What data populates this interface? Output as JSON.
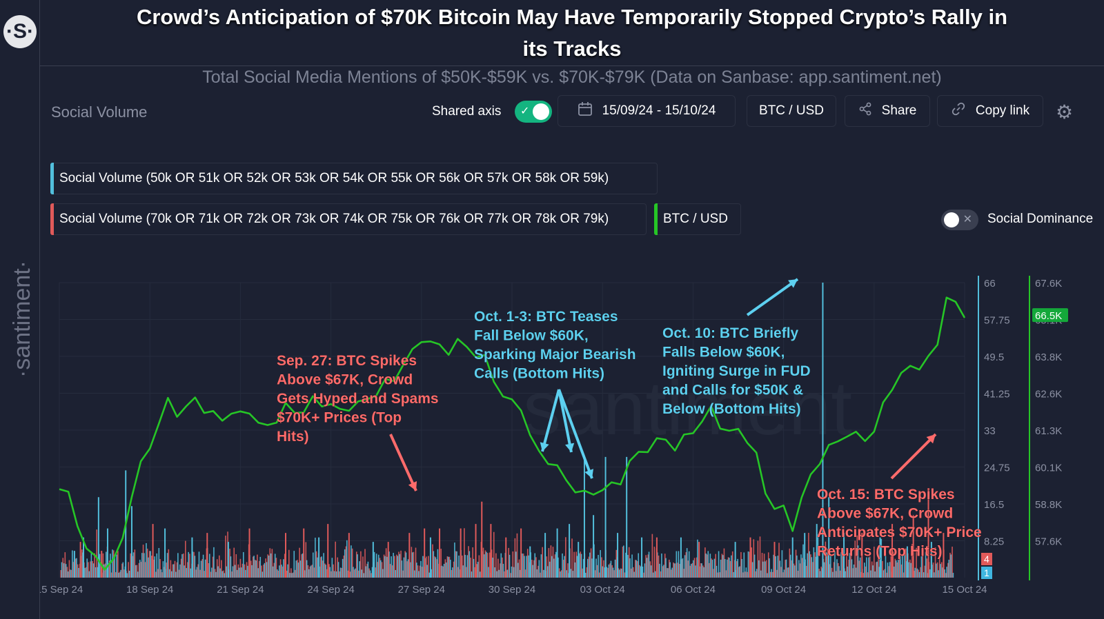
{
  "logo_symbol": "·S·",
  "watermark": "·santiment·",
  "headline": "Crowd’s Anticipation of $70K Bitcoin May Have Temporarily Stopped Crypto’s Rally in its Tracks",
  "subtitle": "Total Social Media Mentions of $50K-$59K vs. $70K-$79K (Data on Sanbase: app.santiment.net)",
  "toolbar": {
    "section_label": "Social Volume",
    "shared_axis_label": "Shared axis",
    "shared_axis_on": true,
    "date_range": "15/09/24 - 15/10/24",
    "pair": "BTC / USD",
    "share_label": "Share",
    "copy_link_label": "Copy link"
  },
  "legend": {
    "item1": "Social Volume (50k OR 51k OR 52k OR 53k OR 54k OR 55k OR 56k OR 57k OR 58k OR 59k)",
    "item2": "Social Volume (70k OR 71k OR 72k OR 73k OR 74k OR 75k OR 76k OR 77k OR 78k OR 79k)",
    "item3": "BTC / USD",
    "social_dominance_label": "Social Dominance",
    "social_dominance_on": false
  },
  "colors": {
    "background": "#1c2132",
    "blue": "#52bfdc",
    "red": "#e05a5a",
    "green": "#26c626",
    "annotation_red": "#ff6b6b",
    "annotation_blue": "#5dd0f0"
  },
  "chart_data": {
    "type": "line",
    "x_tick_labels": [
      "15 Sep 24",
      "18 Sep 24",
      "21 Sep 24",
      "24 Sep 24",
      "27 Sep 24",
      "30 Sep 24",
      "03 Oct 24",
      "06 Oct 24",
      "09 Oct 24",
      "12 Oct 24",
      "15 Oct 24"
    ],
    "x_range_days": [
      0,
      30
    ],
    "y_left_ticks": [
      "66",
      "57.75",
      "49.5",
      "41.25",
      "33",
      "24.75",
      "16.5",
      "8.25"
    ],
    "y_left_range": [
      0,
      66
    ],
    "y_right_ticks": [
      "67.6K",
      "66.5K",
      "65.1K",
      "63.8K",
      "62.6K",
      "61.3K",
      "60.1K",
      "58.8K",
      "57.6K"
    ],
    "y_right_range": [
      57.6,
      67.6
    ],
    "btc_latest_label": "66.5K",
    "latest_red_value": "4",
    "latest_blue_value": "1",
    "series": [
      {
        "name": "BTC / USD",
        "color": "#26c626",
        "x_days": [
          0,
          0.3,
          0.6,
          0.9,
          1.2,
          1.5,
          1.8,
          2.1,
          2.4,
          2.7,
          3.0,
          3.3,
          3.6,
          3.9,
          4.2,
          4.5,
          4.8,
          5.1,
          5.4,
          5.7,
          6.0,
          6.3,
          6.6,
          6.9,
          7.2,
          7.5,
          7.8,
          8.1,
          8.4,
          8.7,
          9.0,
          9.3,
          9.6,
          9.9,
          10.2,
          10.5,
          10.8,
          11.1,
          11.4,
          11.7,
          12.0,
          12.3,
          12.6,
          12.9,
          13.2,
          13.5,
          13.8,
          14.1,
          14.4,
          14.7,
          15.0,
          15.3,
          15.6,
          15.9,
          16.2,
          16.5,
          16.8,
          17.1,
          17.4,
          17.7,
          18.0,
          18.3,
          18.6,
          18.9,
          19.2,
          19.5,
          19.8,
          20.1,
          20.4,
          20.7,
          21.0,
          21.3,
          21.6,
          21.9,
          22.2,
          22.5,
          22.8,
          23.1,
          23.4,
          23.7,
          24.0,
          24.3,
          24.6,
          24.9,
          25.2,
          25.5,
          25.8,
          26.1,
          26.4,
          26.7,
          27.0,
          27.3,
          27.6,
          27.9,
          28.2,
          28.5,
          28.8,
          29.1,
          29.4,
          29.7,
          30.0
        ],
        "values": [
          60.6,
          60.4,
          59.5,
          58.5,
          58.3,
          58.0,
          58.1,
          59.0,
          60.4,
          61.4,
          62.1,
          62.8,
          63.6,
          63.2,
          63.3,
          63.7,
          63.3,
          63.1,
          63.0,
          63.2,
          63.1,
          63.3,
          62.8,
          62.7,
          63.0,
          63.4,
          63.2,
          63.3,
          63.6,
          63.5,
          63.5,
          63.2,
          63.4,
          63.5,
          63.6,
          63.9,
          64.2,
          64.3,
          64.9,
          65.2,
          65.7,
          65.6,
          65.4,
          65.3,
          65.6,
          65.4,
          65.2,
          65.0,
          64.3,
          63.8,
          63.5,
          63.4,
          62.4,
          61.8,
          61.6,
          61.3,
          60.9,
          60.6,
          60.4,
          60.5,
          60.6,
          60.7,
          60.9,
          61.5,
          61.8,
          62.0,
          62.2,
          62.3,
          62.0,
          62.3,
          62.6,
          62.9,
          63.3,
          62.8,
          62.5,
          62.6,
          62.3,
          61.7,
          60.5,
          60.0,
          59.9,
          59.3,
          60.3,
          61.0,
          61.6,
          62.0,
          62.2,
          62.5,
          62.4,
          62.3,
          62.6,
          63.4,
          64.1,
          64.5,
          64.7,
          64.8,
          65.0,
          65.5,
          67.2,
          66.8,
          66.5
        ]
      },
      {
        "name": "Social Volume (50k OR 51k OR 52k OR 53k OR 54k OR 55k OR 56k OR 57k OR 58k OR 59k)",
        "color": "#52bfdc",
        "spikes": [
          {
            "x_day": 0.5,
            "value": 6
          },
          {
            "x_day": 0.8,
            "value": 9
          },
          {
            "x_day": 1.3,
            "value": 18
          },
          {
            "x_day": 1.6,
            "value": 11
          },
          {
            "x_day": 2.2,
            "value": 24
          },
          {
            "x_day": 2.4,
            "value": 16
          },
          {
            "x_day": 3.5,
            "value": 11
          },
          {
            "x_day": 4.4,
            "value": 9
          },
          {
            "x_day": 5.6,
            "value": 8
          },
          {
            "x_day": 8.6,
            "value": 9
          },
          {
            "x_day": 10.4,
            "value": 8
          },
          {
            "x_day": 12.3,
            "value": 9
          },
          {
            "x_day": 15.6,
            "value": 7
          },
          {
            "x_day": 16.1,
            "value": 10
          },
          {
            "x_day": 16.5,
            "value": 11
          },
          {
            "x_day": 16.9,
            "value": 12
          },
          {
            "x_day": 17.2,
            "value": 8
          },
          {
            "x_day": 17.4,
            "value": 27
          },
          {
            "x_day": 17.7,
            "value": 14
          },
          {
            "x_day": 18.1,
            "value": 27
          },
          {
            "x_day": 18.5,
            "value": 10
          },
          {
            "x_day": 18.8,
            "value": 27
          },
          {
            "x_day": 19.3,
            "value": 9
          },
          {
            "x_day": 20.6,
            "value": 9
          },
          {
            "x_day": 22.4,
            "value": 8
          },
          {
            "x_day": 24.3,
            "value": 9
          },
          {
            "x_day": 24.7,
            "value": 10
          },
          {
            "x_day": 25.1,
            "value": 12
          },
          {
            "x_day": 25.3,
            "value": 66
          },
          {
            "x_day": 25.5,
            "value": 18
          },
          {
            "x_day": 26.0,
            "value": 10
          },
          {
            "x_day": 27.2,
            "value": 9
          },
          {
            "x_day": 28.1,
            "value": 7
          },
          {
            "x_day": 28.9,
            "value": 8
          }
        ]
      },
      {
        "name": "Social Volume (70k OR 71k OR 72k OR 73k OR 74k OR 75k OR 76k OR 77k OR 78k OR 79k)",
        "color": "#e05a5a",
        "spikes": [
          {
            "x_day": 0.7,
            "value": 8
          },
          {
            "x_day": 1.4,
            "value": 6
          },
          {
            "x_day": 3.1,
            "value": 12
          },
          {
            "x_day": 4.9,
            "value": 10
          },
          {
            "x_day": 6.3,
            "value": 11
          },
          {
            "x_day": 7.5,
            "value": 10
          },
          {
            "x_day": 8.1,
            "value": 11
          },
          {
            "x_day": 8.9,
            "value": 12
          },
          {
            "x_day": 9.6,
            "value": 10
          },
          {
            "x_day": 10.9,
            "value": 8
          },
          {
            "x_day": 11.6,
            "value": 10
          },
          {
            "x_day": 12.1,
            "value": 11
          },
          {
            "x_day": 12.6,
            "value": 11
          },
          {
            "x_day": 13.3,
            "value": 11
          },
          {
            "x_day": 13.8,
            "value": 12
          },
          {
            "x_day": 14.0,
            "value": 17
          },
          {
            "x_day": 14.3,
            "value": 12
          },
          {
            "x_day": 14.8,
            "value": 9
          },
          {
            "x_day": 15.3,
            "value": 11
          },
          {
            "x_day": 19.8,
            "value": 9
          },
          {
            "x_day": 21.2,
            "value": 8
          },
          {
            "x_day": 22.9,
            "value": 9
          },
          {
            "x_day": 23.7,
            "value": 8
          },
          {
            "x_day": 26.6,
            "value": 10
          },
          {
            "x_day": 27.6,
            "value": 12
          },
          {
            "x_day": 28.3,
            "value": 14
          },
          {
            "x_day": 28.8,
            "value": 20
          },
          {
            "x_day": 29.3,
            "value": 10
          }
        ]
      }
    ],
    "annotations": [
      {
        "text": "Sep. 27: BTC Spikes Above $67K, Crowd Gets Hyped and Spams $70K+ Prices (Top Hits)",
        "color": "red"
      },
      {
        "text": "Oct. 1-3: BTC Teases Fall Below $60K, Sparking Major Bearish Calls (Bottom Hits)",
        "color": "blue"
      },
      {
        "text": "Oct. 10: BTC Briefly Falls Below $60K, Igniting Surge in FUD and Calls for $50K & Below (Bottom Hits)",
        "color": "blue"
      },
      {
        "text": "Oct. 15: BTC Spikes Above $67K, Crowd Anticipates $70K+ Price Returns (Top Hits)",
        "color": "red"
      }
    ]
  }
}
